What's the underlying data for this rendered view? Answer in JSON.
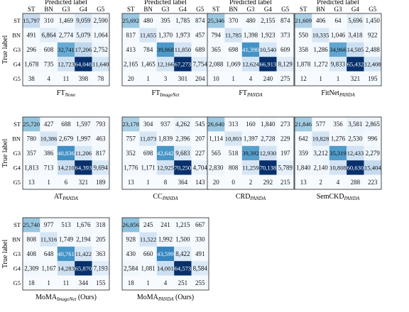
{
  "common": {
    "xlabel": "Predicted label",
    "ylabel": "True label",
    "classes": [
      "ST",
      "BN",
      "G3",
      "G4",
      "G5"
    ]
  },
  "chart_data": [
    {
      "type": "heatmap",
      "title": "FT",
      "title_sub": "None",
      "values": [
        [
          15797,
          310,
          1469,
          9059,
          2590
        ],
        [
          491,
          6864,
          2774,
          5079,
          1064
        ],
        [
          296,
          608,
          32741,
          17206,
          2752
        ],
        [
          1678,
          735,
          12723,
          64048,
          11640
        ],
        [
          38,
          4,
          11,
          398,
          78
        ]
      ]
    },
    {
      "type": "heatmap",
      "title": "FT",
      "title_sub": "ImageNet",
      "values": [
        [
          25692,
          480,
          395,
          1785,
          874
        ],
        [
          817,
          11655,
          1370,
          1973,
          457
        ],
        [
          413,
          784,
          39868,
          11850,
          689
        ],
        [
          2165,
          1465,
          12166,
          67273,
          7754
        ],
        [
          20,
          1,
          3,
          301,
          204
        ]
      ]
    },
    {
      "type": "heatmap",
      "title": "FT",
      "title_sub": "PANDA",
      "values": [
        [
          25346,
          370,
          480,
          2155,
          874
        ],
        [
          794,
          11785,
          1398,
          1923,
          373
        ],
        [
          365,
          698,
          41390,
          10540,
          609
        ],
        [
          2088,
          1069,
          12624,
          66913,
          8129
        ],
        [
          10,
          1,
          4,
          240,
          275
        ]
      ]
    },
    {
      "type": "heatmap",
      "title": "FitNet",
      "title_sub": "PANDA",
      "values": [
        [
          21609,
          406,
          64,
          5696,
          1450
        ],
        [
          550,
          10335,
          1046,
          3418,
          922
        ],
        [
          358,
          1286,
          34966,
          14505,
          2488
        ],
        [
          1878,
          1272,
          9833,
          65432,
          12408
        ],
        [
          12,
          1,
          1,
          321,
          195
        ]
      ]
    },
    {
      "type": "heatmap",
      "title": "AT",
      "title_sub": "PANDA",
      "values": [
        [
          25720,
          427,
          688,
          1597,
          793
        ],
        [
          780,
          10386,
          2679,
          1997,
          463
        ],
        [
          357,
          386,
          40836,
          11206,
          817
        ],
        [
          1813,
          713,
          14210,
          64393,
          9694
        ],
        [
          13,
          1,
          6,
          321,
          189
        ]
      ]
    },
    {
      "type": "heatmap",
      "title": "CC",
      "title_sub": "PANDA",
      "values": [
        [
          23178,
          304,
          937,
          4262,
          545
        ],
        [
          757,
          11073,
          1839,
          2396,
          207
        ],
        [
          352,
          698,
          42642,
          9683,
          227
        ],
        [
          1776,
          1171,
          12925,
          70250,
          4704
        ],
        [
          13,
          1,
          8,
          364,
          143
        ]
      ]
    },
    {
      "type": "heatmap",
      "title": "CRD",
      "title_sub": "PANDA",
      "values": [
        [
          26640,
          313,
          160,
          1840,
          273
        ],
        [
          1114,
          10803,
          1397,
          2728,
          229
        ],
        [
          565,
          518,
          39392,
          12930,
          197
        ],
        [
          2830,
          808,
          11259,
          70138,
          5789
        ],
        [
          20,
          0,
          2,
          292,
          215
        ]
      ]
    },
    {
      "type": "heatmap",
      "title": "SemCKD",
      "title_sub": "PANDA",
      "values": [
        [
          21846,
          577,
          356,
          3581,
          2865
        ],
        [
          642,
          10828,
          1276,
          2530,
          996
        ],
        [
          359,
          3212,
          35319,
          12433,
          2279
        ],
        [
          1840,
          2140,
          10808,
          60630,
          15404
        ],
        [
          13,
          2,
          4,
          288,
          223
        ]
      ]
    },
    {
      "type": "heatmap",
      "title": "MoMA",
      "title_sub": "ImageNet",
      "title_suffix": " (Ours)",
      "values": [
        [
          25740,
          977,
          513,
          1676,
          318
        ],
        [
          808,
          11316,
          1749,
          2194,
          205
        ],
        [
          408,
          648,
          40761,
          11422,
          363
        ],
        [
          2309,
          1167,
          14283,
          65870,
          7193
        ],
        [
          18,
          1,
          11,
          344,
          155
        ]
      ]
    },
    {
      "type": "heatmap",
      "title": "MoMA",
      "title_sub": "PANDA",
      "title_suffix": " (Ours)",
      "values": [
        [
          26856,
          245,
          241,
          1215,
          667
        ],
        [
          928,
          11522,
          1992,
          1500,
          330
        ],
        [
          430,
          660,
          43599,
          8422,
          491
        ],
        [
          2584,
          1081,
          14001,
          64573,
          8584
        ],
        [
          18,
          1,
          4,
          251,
          255
        ]
      ]
    }
  ]
}
